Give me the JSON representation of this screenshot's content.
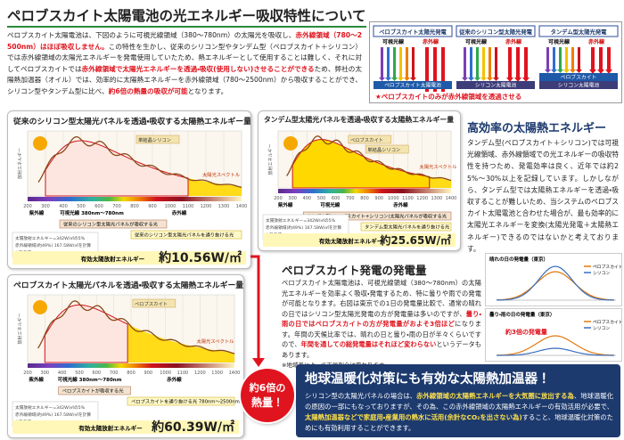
{
  "header": {
    "title": "ペロブスカイト太陽電池の光エネルギー吸収特性について"
  },
  "intro": [
    "ペロブスカイト太陽電池は、下図のように可視光線領域（380〜780nm）の太陽光を吸収し、",
    "赤外線領域（780〜2500nm）はほぼ吸収しません。",
    "この特性を生かし、従来のシリコン型やタンデム型（ペロブスカイト＋シリコン）では赤外線領域の太陽光エネルギーを発電使用していたため、熱エネルギーとして使用することは難しく、それに対してペロブスカイトでは",
    "赤外線領域で太陽光エネルギーを透過・吸収(使用しない)させることができる",
    "ため、弊社の太陽熱加温器（オイル）では、効率的に太陽熱エネルギーを赤外線領域（780〜2500nm）から吸収することができ、シリコン型やタンデム型に比べ、",
    "約6倍の熱量の吸収が可能",
    "となります。"
  ],
  "diagram": {
    "panels": [
      {
        "title": "ペロブスカイト太陽光発電",
        "visible": "可視光線",
        "infrared": "赤外線",
        "cells": [
          "ペロブスカイト太陽電池"
        ]
      },
      {
        "title": "従来のシリコン型太陽光発電",
        "visible": "可視光線",
        "infrared": "赤外線",
        "cells": [
          "シリコン太陽電池"
        ]
      },
      {
        "title": "タンデム型太陽光発電",
        "visible": "可視光線",
        "infrared": "赤外線",
        "cells": [
          "ペロブスカイト",
          "シリコン太陽電池"
        ]
      }
    ],
    "caption": "★ペロブスカイトのみが赤外線領域を透過させる"
  },
  "panels": [
    {
      "title": "従来のシリコン型太陽光パネルを透過・吸収する太陽熱エネルギー量",
      "ylabel": "放射エネルギー",
      "xticks": [
        200,
        300,
        400,
        500,
        600,
        700,
        800,
        900,
        1000,
        1100,
        1200,
        1300,
        1400
      ],
      "bands": [
        "紫外線",
        "可視光線 380nm〜780nm",
        "赤外線"
      ],
      "labels": [
        "単結晶シリコン",
        "太陽光スペクトル"
      ],
      "callouts": [
        "従来のシリコン型太陽光パネルが吸収する光",
        "従来のシリコン型太陽光パネルを通り抜ける光"
      ],
      "note": [
        "太陽放射エネルギー=342W/㎡の5%",
        "赤外線領域(約49%) 167.58W/㎡を計算",
        "※参考値"
      ],
      "energy_label": "有効太陽放射エネルギー",
      "energy_value": "約10.56W/㎡"
    },
    {
      "title": "タンデム型太陽光パネルを透過・吸収する太陽熱エネルギー量",
      "ylabel": "放射エネルギー",
      "xticks": [
        200,
        300,
        400,
        500,
        600,
        700,
        800,
        900,
        1000,
        1100,
        1200,
        1300,
        1400
      ],
      "bands": [
        "紫外線",
        "可視光線",
        "赤外線"
      ],
      "labels": [
        "ペロブスカイト",
        "単結晶シリコン",
        "太陽光スペクトル"
      ],
      "callouts": [
        "タンデム型(ペロブスカイト+シリコン)太陽光パネルが吸収する光",
        "タンデム型太陽光パネルを通り抜ける光"
      ],
      "note": [
        "太陽放射エネルギー=342W/㎡の5%",
        "赤外線領域(約49%) 167.58W/㎡を計算",
        "※参考値"
      ],
      "energy_label": "有効太陽放射エネルギー",
      "energy_value": "約25.65W/㎡"
    },
    {
      "title": "ペロブスカイト太陽光パネルを透過・吸収する太陽熱エネルギー量",
      "ylabel": "放射エネルギー",
      "xticks": [
        200,
        300,
        400,
        500,
        600,
        700,
        800,
        900,
        1000,
        1100,
        1200,
        1300,
        1400
      ],
      "bands": [
        "紫外線",
        "可視光線 380nm〜780nm",
        "赤外線"
      ],
      "labels": [
        "ペロブスカイト",
        "太陽光スペクトル"
      ],
      "callouts": [
        "ペロブスカイトが吸収する光",
        "ペロブスカイトを通り抜ける光 780nm〜2500nm(赤外線領域)"
      ],
      "note": [
        "太陽放射エネルギー=342W/㎡の5%",
        "赤外線領域(約49%) 167.58W/㎡を計算",
        "※参考値"
      ],
      "energy_label": "有効太陽放射エネルギー",
      "energy_value": "約60.39W/㎡"
    }
  ],
  "badge": [
    "約6倍の",
    "熱量！"
  ],
  "efficiency": {
    "title": "高効率の太陽熱エネルギー",
    "body": "タンデム型(ペロブスカイト＋シリコン)では可視光線領域、赤外線領域での光エネルギーの吸収特性を持つため、発電効率は良く、近年では約25%〜30%以上を記録しています。しかしながら、タンデム型では太陽熱エネルギーを透過・吸収することが難しいため、当システムのペロブスカイト太陽電池と合わせた場合が、最も効率的に太陽光エネルギーを変換(太陽光発電＋太陽熱エネルギー)できるのではないかと考えております。"
  },
  "generation": {
    "title": "ペロブスカイト発電の発電量",
    "body": [
      "ペロブスカイト太陽電池は、可視光線領域（380〜780nm）の太陽光エネルギーを効率よく吸収・発電するため、特に曇りや雨での発電が可能となります。右図は東京での1日の発電量比較で、通常の晴れの日ではシリコン型太陽光発電の方が発電量は多いのですが、",
      "曇り・雨の日ではペロブスカイトの方が発電量がおよそ3倍ほど",
      "になります。年間の天候比率では、晴れの日と曇り・雨の日が半々くらいですので、",
      "年間を通しての総発電量はそれほど変わらない",
      "というデータもあります。"
    ],
    "footnote": "※地域差によって天候割合は変わります。"
  },
  "mini_charts": [
    {
      "title": "晴れの日の発電量（東京）",
      "legend": [
        "ペロブスカイト",
        "シリコン"
      ]
    },
    {
      "title": "曇り・雨の日の発電量（東京）",
      "callout": "約3倍の発電量",
      "legend": [
        "ペロブスカイト",
        "シリコン"
      ]
    }
  ],
  "warming": {
    "title": "地球温暖化対策にも有効な太陽熱加温器！",
    "body": [
      "シリコン型の太陽光パネルの場合は、",
      "赤外線領域の太陽熱エネルギーを大気圏に放出する為",
      "、地球温暖化の原因の一部にもなっておりますが、その為、この赤外線領域の太陽熱エネルギーの有効活用が必要で、",
      "太陽熱加温器などで家庭用・産業用の熱水に活用(余計なCO₂を出さない為)",
      "すること、地球温暖化対策のためにも有効利用することができます。"
    ]
  }
}
